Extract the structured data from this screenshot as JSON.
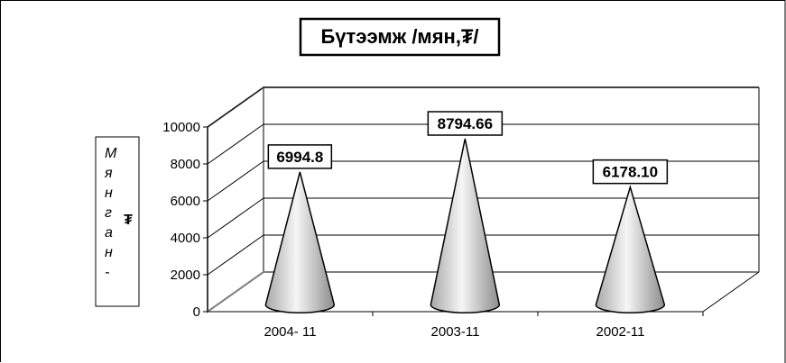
{
  "chart_data": {
    "type": "bar",
    "style": "3d-cone",
    "title": "Бүтээмж /мян,₮/",
    "ylabel_letters": [
      "М",
      "я",
      "н",
      "г",
      "а",
      "н",
      "-"
    ],
    "ylabel_symbol": "₮",
    "categories": [
      "2004- 11",
      "2003-11",
      "2002-11"
    ],
    "values": [
      6994.8,
      8794.66,
      6178.1
    ],
    "value_labels": [
      "6994.8",
      "8794.66",
      "6178.10"
    ],
    "ylim": [
      0,
      10000
    ],
    "yticks": [
      "0",
      "2000",
      "4000",
      "6000",
      "8000",
      "10000"
    ],
    "grid": true,
    "legend": "none"
  },
  "colors": {
    "frame": "#000000",
    "grid": "#000000",
    "walls": "#7f7f7f",
    "cone_light": "#f4f4f4",
    "cone_dark": "#9a9a9a"
  }
}
